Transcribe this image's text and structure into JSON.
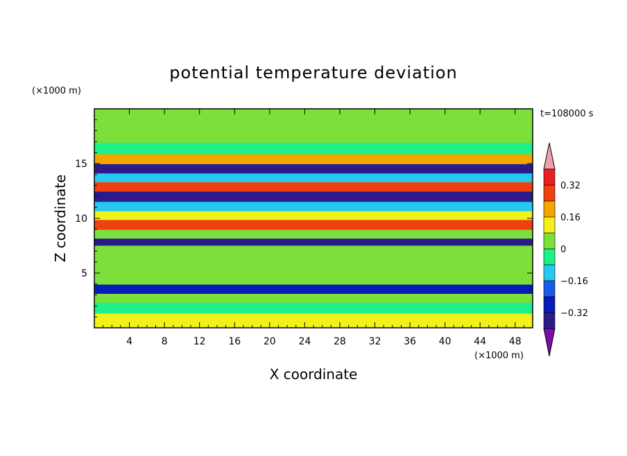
{
  "chart_data": {
    "type": "heatmap",
    "title": "potential temperature deviation",
    "xlabel": "X coordinate",
    "ylabel": "Z coordinate",
    "x_unit": "(×1000 m)",
    "y_unit": "(×1000 m)",
    "time_label": "t=108000 s",
    "xlim": [
      0,
      50
    ],
    "ylim": [
      0,
      20
    ],
    "x_ticks": [
      "4",
      "8",
      "12",
      "16",
      "20",
      "24",
      "28",
      "32",
      "36",
      "40",
      "44",
      "48"
    ],
    "y_ticks": [
      "5",
      "10",
      "15"
    ],
    "colorbar": {
      "levels": [
        -0.48,
        -0.4,
        -0.32,
        -0.24,
        -0.16,
        -0.08,
        0,
        0.08,
        0.16,
        0.24,
        0.32,
        0.4,
        0.48
      ],
      "tick_labels": [
        "0.32",
        "0.16",
        "0",
        "−0.16",
        "−0.32"
      ],
      "colors": [
        "#7a0fa8",
        "#2a1a8c",
        "#0a1ab8",
        "#1a5ae8",
        "#25c8f0",
        "#1ef08a",
        "#7de03a",
        "#f2f21a",
        "#f5a500",
        "#f04010",
        "#e82020",
        "#f0a0a8"
      ]
    },
    "bands": [
      {
        "z": 0.8,
        "value": 0.1
      },
      {
        "z": 1.8,
        "value": -0.05
      },
      {
        "z": 2.8,
        "value": 0.05
      },
      {
        "z": 3.4,
        "value": -0.3
      },
      {
        "z": 4.5,
        "value": 0.06
      },
      {
        "z": 6.0,
        "value": 0.02
      },
      {
        "z": 7.2,
        "value": 0.0
      },
      {
        "z": 7.8,
        "value": -0.4
      },
      {
        "z": 8.5,
        "value": 0.05
      },
      {
        "z": 9.4,
        "value": 0.25
      },
      {
        "z": 10.3,
        "value": 0.15
      },
      {
        "z": 11.0,
        "value": -0.15
      },
      {
        "z": 12.0,
        "value": -0.35
      },
      {
        "z": 12.9,
        "value": 0.3
      },
      {
        "z": 13.7,
        "value": -0.1
      },
      {
        "z": 14.5,
        "value": -0.38
      },
      {
        "z": 15.4,
        "value": 0.22
      },
      {
        "z": 16.3,
        "value": -0.05
      },
      {
        "z": 17.5,
        "value": 0.02
      },
      {
        "z": 19.0,
        "value": 0.06
      }
    ]
  }
}
